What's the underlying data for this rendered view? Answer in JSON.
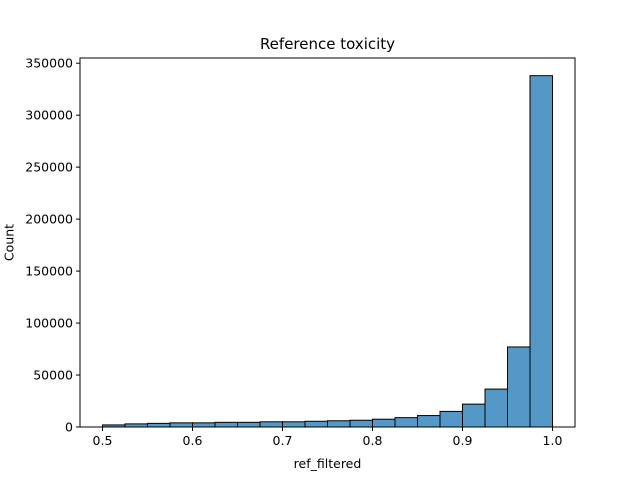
{
  "chart_data": {
    "type": "bar",
    "title": "Reference toxicity",
    "xlabel": "ref_filtered",
    "ylabel": "Count",
    "xlim": [
      0.475,
      1.025
    ],
    "ylim": [
      0,
      355000
    ],
    "xticks": [
      0.5,
      0.6,
      0.7,
      0.8,
      0.9,
      1.0
    ],
    "xtick_labels": [
      "0.5",
      "0.6",
      "0.7",
      "0.8",
      "0.9",
      "1.0"
    ],
    "yticks": [
      0,
      50000,
      100000,
      150000,
      200000,
      250000,
      300000,
      350000
    ],
    "ytick_labels": [
      "0",
      "50000",
      "100000",
      "150000",
      "200000",
      "250000",
      "300000",
      "350000"
    ],
    "bins": [
      {
        "x0": 0.5,
        "x1": 0.525,
        "count": 2000
      },
      {
        "x0": 0.525,
        "x1": 0.55,
        "count": 3000
      },
      {
        "x0": 0.55,
        "x1": 0.575,
        "count": 3500
      },
      {
        "x0": 0.575,
        "x1": 0.6,
        "count": 4000
      },
      {
        "x0": 0.6,
        "x1": 0.625,
        "count": 4000
      },
      {
        "x0": 0.625,
        "x1": 0.65,
        "count": 4500
      },
      {
        "x0": 0.65,
        "x1": 0.675,
        "count": 4500
      },
      {
        "x0": 0.675,
        "x1": 0.7,
        "count": 5000
      },
      {
        "x0": 0.7,
        "x1": 0.725,
        "count": 5000
      },
      {
        "x0": 0.725,
        "x1": 0.75,
        "count": 5500
      },
      {
        "x0": 0.75,
        "x1": 0.775,
        "count": 6000
      },
      {
        "x0": 0.775,
        "x1": 0.8,
        "count": 6500
      },
      {
        "x0": 0.8,
        "x1": 0.825,
        "count": 7500
      },
      {
        "x0": 0.825,
        "x1": 0.85,
        "count": 9000
      },
      {
        "x0": 0.85,
        "x1": 0.875,
        "count": 11000
      },
      {
        "x0": 0.875,
        "x1": 0.9,
        "count": 15000
      },
      {
        "x0": 0.9,
        "x1": 0.925,
        "count": 22000
      },
      {
        "x0": 0.925,
        "x1": 0.95,
        "count": 36500
      },
      {
        "x0": 0.95,
        "x1": 0.975,
        "count": 77000
      },
      {
        "x0": 0.975,
        "x1": 1.0,
        "count": 338000
      }
    ],
    "bar_color": "#5498c7",
    "edge_color": "#000000",
    "grid": false,
    "legend": "none"
  }
}
